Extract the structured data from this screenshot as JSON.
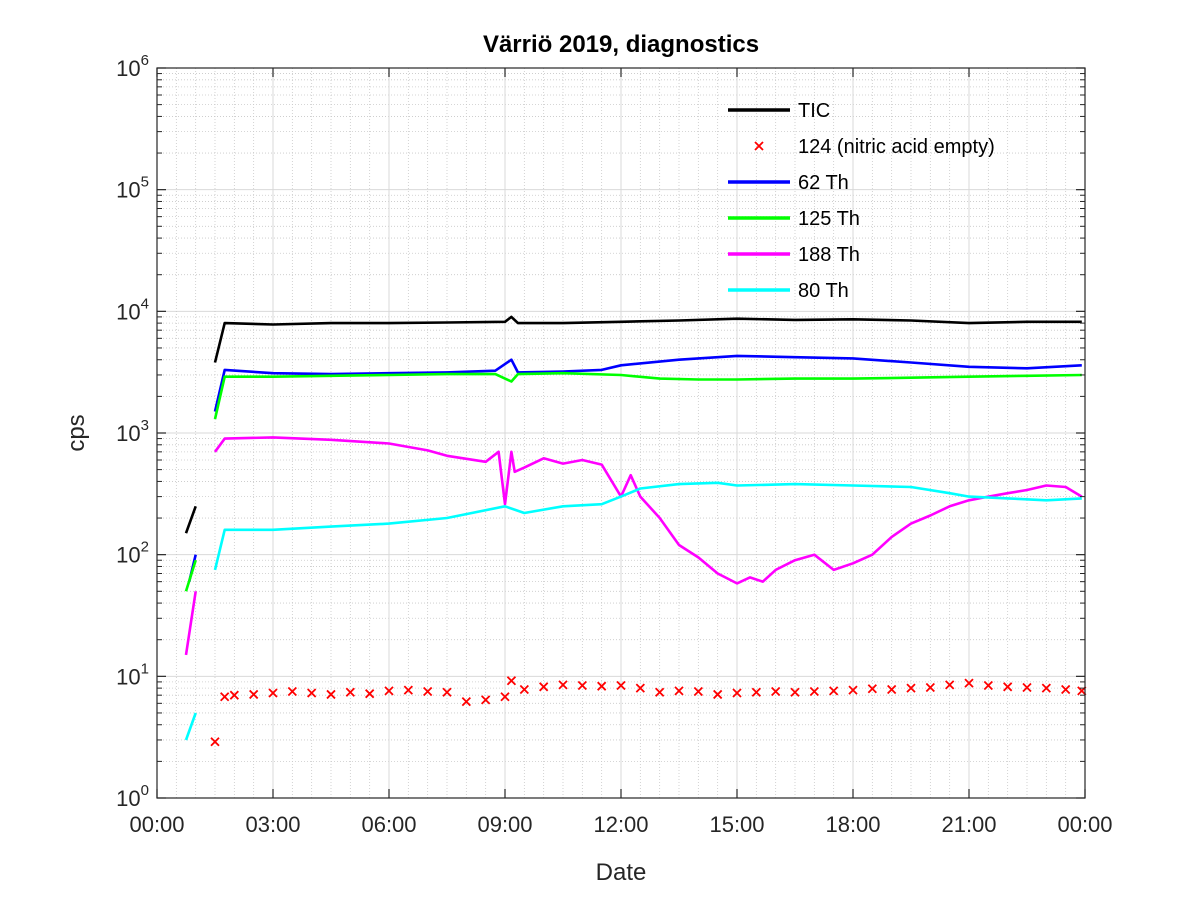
{
  "chart_data": {
    "type": "line",
    "title": "Värriö 2019, diagnostics",
    "xlabel": "Date",
    "ylabel": "cps",
    "yscale": "log",
    "ylim": [
      1,
      1000000
    ],
    "xlim": [
      "00:00",
      "24:00"
    ],
    "x_tick_labels": [
      "00:00",
      "03:00",
      "06:00",
      "09:00",
      "12:00",
      "15:00",
      "18:00",
      "21:00",
      "00:00"
    ],
    "y_tick_labels": [
      {
        "base": "10",
        "exp": "0"
      },
      {
        "base": "10",
        "exp": "1"
      },
      {
        "base": "10",
        "exp": "2"
      },
      {
        "base": "10",
        "exp": "3"
      },
      {
        "base": "10",
        "exp": "4"
      },
      {
        "base": "10",
        "exp": "5"
      },
      {
        "base": "10",
        "exp": "6"
      }
    ],
    "grid": "major and minor",
    "legend_position": "top-right",
    "series": [
      {
        "name": "TIC",
        "color": "#000000",
        "style": "line",
        "x": [
          "00:45",
          "01:00",
          "01:30",
          "01:45",
          "03:00",
          "04:30",
          "06:00",
          "07:30",
          "09:00",
          "09:10",
          "09:20",
          "10:30",
          "12:00",
          "13:30",
          "15:00",
          "16:30",
          "18:00",
          "19:30",
          "21:00",
          "22:30",
          "23:55"
        ],
        "y": [
          150,
          250,
          3800,
          8000,
          7800,
          8000,
          8000,
          8100,
          8200,
          9000,
          8000,
          8000,
          8200,
          8400,
          8700,
          8500,
          8600,
          8400,
          8000,
          8200,
          8200
        ]
      },
      {
        "name": "124 (nitric acid empty)",
        "color": "#ff0000",
        "style": "marker",
        "x": [
          "01:30",
          "01:45",
          "02:00",
          "02:30",
          "03:00",
          "03:30",
          "04:00",
          "04:30",
          "05:00",
          "05:30",
          "06:00",
          "06:30",
          "07:00",
          "07:30",
          "08:00",
          "08:30",
          "09:00",
          "09:10",
          "09:30",
          "10:00",
          "10:30",
          "11:00",
          "11:30",
          "12:00",
          "12:30",
          "13:00",
          "13:30",
          "14:00",
          "14:30",
          "15:00",
          "15:30",
          "16:00",
          "16:30",
          "17:00",
          "17:30",
          "18:00",
          "18:30",
          "19:00",
          "19:30",
          "20:00",
          "20:30",
          "21:00",
          "21:30",
          "22:00",
          "22:30",
          "23:00",
          "23:30",
          "23:55"
        ],
        "y": [
          2.9,
          6.8,
          7.0,
          7.1,
          7.3,
          7.5,
          7.3,
          7.1,
          7.4,
          7.2,
          7.6,
          7.7,
          7.5,
          7.4,
          6.2,
          6.4,
          6.8,
          9.2,
          7.8,
          8.2,
          8.5,
          8.4,
          8.3,
          8.4,
          8.0,
          7.4,
          7.6,
          7.5,
          7.1,
          7.3,
          7.4,
          7.5,
          7.4,
          7.5,
          7.6,
          7.7,
          7.9,
          7.8,
          8.0,
          8.1,
          8.5,
          8.8,
          8.4,
          8.2,
          8.1,
          8.0,
          7.8,
          7.6
        ]
      },
      {
        "name": "62 Th",
        "color": "#0000ff",
        "style": "line",
        "x": [
          "00:50",
          "01:00",
          "01:30",
          "01:45",
          "03:00",
          "04:30",
          "06:00",
          "07:30",
          "08:45",
          "09:10",
          "09:20",
          "10:30",
          "11:30",
          "12:00",
          "13:30",
          "15:00",
          "16:30",
          "18:00",
          "19:30",
          "21:00",
          "22:30",
          "23:55"
        ],
        "y": [
          60,
          100,
          1500,
          3300,
          3100,
          3050,
          3100,
          3150,
          3250,
          4000,
          3150,
          3200,
          3300,
          3600,
          4000,
          4300,
          4200,
          4100,
          3800,
          3500,
          3400,
          3600
        ]
      },
      {
        "name": "125 Th",
        "color": "#00ff00",
        "style": "line",
        "x": [
          "00:45",
          "01:00",
          "01:30",
          "01:45",
          "03:00",
          "04:30",
          "06:00",
          "07:30",
          "08:45",
          "09:10",
          "09:20",
          "10:30",
          "12:00",
          "13:00",
          "14:00",
          "15:00",
          "16:30",
          "18:00",
          "19:30",
          "21:00",
          "22:30",
          "23:55"
        ],
        "y": [
          50,
          90,
          1300,
          2900,
          2900,
          2950,
          3000,
          3050,
          3050,
          2650,
          3050,
          3100,
          3000,
          2800,
          2750,
          2750,
          2800,
          2800,
          2850,
          2900,
          2950,
          3000
        ]
      },
      {
        "name": "188 Th",
        "color": "#ff00ff",
        "style": "line",
        "x": [
          "00:45",
          "01:00",
          "01:30",
          "01:45",
          "03:00",
          "04:30",
          "06:00",
          "07:00",
          "07:30",
          "08:30",
          "08:50",
          "09:00",
          "09:10",
          "09:15",
          "09:30",
          "10:00",
          "10:30",
          "11:00",
          "11:30",
          "12:00",
          "12:15",
          "12:30",
          "13:00",
          "13:30",
          "14:00",
          "14:30",
          "15:00",
          "15:20",
          "15:40",
          "16:00",
          "16:30",
          "17:00",
          "17:30",
          "18:00",
          "18:30",
          "19:00",
          "19:30",
          "20:00",
          "20:30",
          "21:00",
          "21:30",
          "22:00",
          "22:30",
          "23:00",
          "23:30",
          "23:55"
        ],
        "y": [
          15,
          50,
          700,
          900,
          920,
          880,
          820,
          720,
          650,
          580,
          700,
          260,
          700,
          480,
          520,
          620,
          560,
          600,
          550,
          300,
          450,
          300,
          200,
          120,
          95,
          70,
          58,
          65,
          60,
          75,
          90,
          100,
          75,
          85,
          100,
          140,
          180,
          210,
          250,
          280,
          300,
          320,
          340,
          370,
          360,
          300
        ]
      },
      {
        "name": "80 Th",
        "color": "#00ffff",
        "style": "line",
        "x": [
          "00:45",
          "01:00",
          "01:30",
          "01:45",
          "03:00",
          "04:30",
          "06:00",
          "07:30",
          "09:00",
          "09:30",
          "10:30",
          "11:30",
          "12:00",
          "12:30",
          "13:30",
          "14:30",
          "15:00",
          "16:30",
          "18:00",
          "19:30",
          "20:30",
          "21:00",
          "22:00",
          "23:00",
          "23:55"
        ],
        "y": [
          3,
          5,
          75,
          160,
          160,
          170,
          180,
          200,
          250,
          220,
          250,
          260,
          300,
          350,
          380,
          390,
          370,
          380,
          370,
          360,
          320,
          300,
          290,
          280,
          290
        ]
      }
    ]
  }
}
